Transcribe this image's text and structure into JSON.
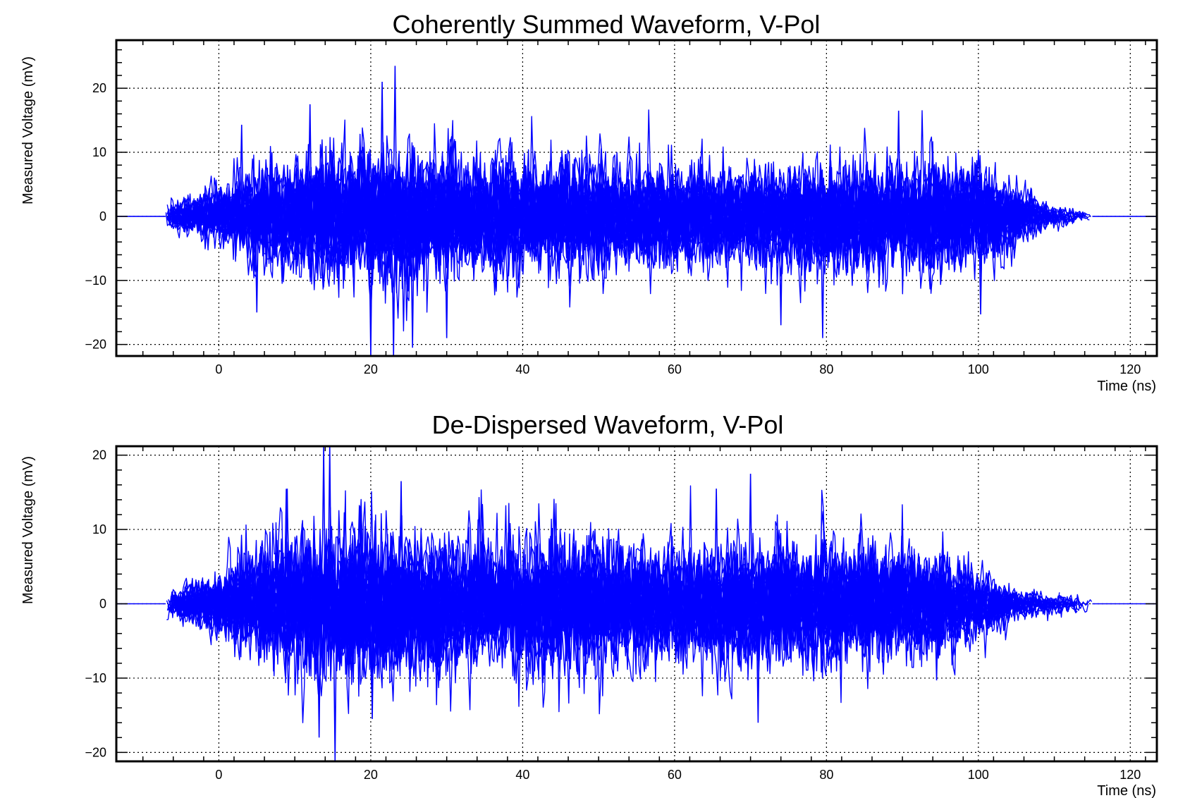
{
  "chart_data": [
    {
      "type": "line",
      "title": "Coherently Summed Waveform, V-Pol",
      "xlabel": "Time (ns)",
      "ylabel": "Measured Voltage (mV)",
      "xlim": [
        -13.5,
        123.5
      ],
      "ylim": [
        -21.8,
        27.5
      ],
      "xticks": [
        0,
        20,
        40,
        60,
        80,
        100,
        120
      ],
      "yticks": [
        -20,
        -10,
        0,
        10,
        20
      ],
      "xtick_labels": [
        "0",
        "20",
        "40",
        "60",
        "80",
        "100",
        "120"
      ],
      "ytick_labels": [
        "−20",
        "−10",
        "0",
        "10",
        "20"
      ],
      "grid": true,
      "line_color": "#0000ff",
      "envelope": {
        "t": [
          -7,
          -3,
          0,
          5,
          10,
          15,
          20,
          25,
          30,
          40,
          50,
          60,
          70,
          80,
          90,
          100,
          103,
          106,
          110,
          115
        ],
        "amplitude": [
          2.5,
          4,
          6,
          10,
          12,
          13,
          14,
          14,
          12,
          12,
          11,
          10,
          10,
          11,
          11,
          10,
          8,
          5,
          2,
          1
        ]
      },
      "peaks": [
        {
          "t": 23.2,
          "v": 23.5
        },
        {
          "t": 21.5,
          "v": 21.0
        },
        {
          "t": 20.0,
          "v": -21.8
        },
        {
          "t": 23.0,
          "v": -21.8
        },
        {
          "t": 12.0,
          "v": 17.5
        },
        {
          "t": 3.0,
          "v": 14.3
        },
        {
          "t": 5.0,
          "v": -15.0
        },
        {
          "t": 30.0,
          "v": -19.0
        },
        {
          "t": 25.5,
          "v": -20.5
        },
        {
          "t": 89.5,
          "v": 16.5
        },
        {
          "t": 79.5,
          "v": -19.0
        },
        {
          "t": 100.3,
          "v": -15.3
        },
        {
          "t": 74.0,
          "v": -17.0
        }
      ],
      "trace_count": 28
    },
    {
      "type": "line",
      "title": "De-Dispersed Waveform, V-Pol",
      "xlabel": "Time (ns)",
      "ylabel": "Measured Voltage (mV)",
      "xlim": [
        -13.5,
        123.5
      ],
      "ylim": [
        -21.2,
        21.2
      ],
      "xticks": [
        0,
        20,
        40,
        60,
        80,
        100,
        120
      ],
      "yticks": [
        -20,
        -10,
        0,
        10,
        20
      ],
      "xtick_labels": [
        "0",
        "20",
        "40",
        "60",
        "80",
        "100",
        "120"
      ],
      "ytick_labels": [
        "−20",
        "−10",
        "0",
        "10",
        "20"
      ],
      "grid": true,
      "line_color": "#0000ff",
      "envelope": {
        "t": [
          -7,
          -3,
          0,
          5,
          10,
          14,
          20,
          25,
          30,
          40,
          50,
          60,
          70,
          80,
          90,
          95,
          100,
          104,
          108,
          115
        ],
        "amplitude": [
          2,
          4,
          6,
          10,
          12,
          14,
          14,
          13,
          12,
          12,
          11,
          10,
          11,
          11,
          10,
          9,
          6,
          3,
          2,
          1
        ]
      },
      "peaks": [
        {
          "t": 13.8,
          "v": 21.2
        },
        {
          "t": 14.6,
          "v": 21.2
        },
        {
          "t": 15.3,
          "v": -21.2
        },
        {
          "t": 9.0,
          "v": 15.5
        },
        {
          "t": 24.0,
          "v": 16.5
        },
        {
          "t": 70.0,
          "v": 17.5
        },
        {
          "t": 65.5,
          "v": 15.5
        },
        {
          "t": 20.2,
          "v": -15.5
        },
        {
          "t": 71.0,
          "v": -16.0
        },
        {
          "t": 13.2,
          "v": -18.0
        },
        {
          "t": 94.5,
          "v": -10.3
        }
      ],
      "trace_count": 28
    }
  ]
}
